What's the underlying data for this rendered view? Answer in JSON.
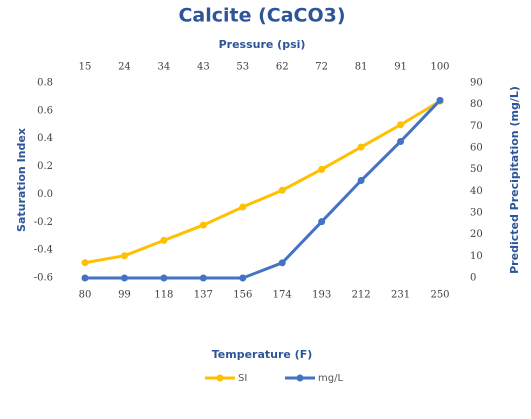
{
  "chart_data": {
    "type": "line",
    "title": "Calcite (CaCO3)",
    "x2_label": "Pressure (psi)",
    "x2_categories": [
      15,
      24,
      34,
      43,
      53,
      62,
      72,
      81,
      91,
      100
    ],
    "xlabel": "Temperature (F)",
    "categories": [
      80,
      99,
      118,
      137,
      156,
      174,
      193,
      212,
      231,
      250
    ],
    "ylabel": "Saturation Index",
    "ylim": [
      -0.6,
      0.8
    ],
    "yticks": [
      -0.6,
      -0.4,
      -0.2,
      {
        "value": 0,
        "label": "0.0"
      },
      0.2,
      0.4,
      0.6,
      0.8
    ],
    "y2label": "Predicted Precipitation (mg/L)",
    "y2lim": [
      0,
      90
    ],
    "y2ticks": [
      0,
      10,
      20,
      30,
      40,
      50,
      60,
      70,
      80,
      90
    ],
    "series": [
      {
        "name": "SI",
        "color": "#ffc000",
        "values": [
          -0.49,
          -0.44,
          -0.33,
          -0.22,
          -0.09,
          0.03,
          0.18,
          0.34,
          0.5,
          0.67
        ]
      },
      {
        "name": "mg/L",
        "color": "#4472c4",
        "axis": "y2",
        "values": [
          0,
          0,
          0,
          0,
          0,
          7,
          26,
          45,
          63,
          82
        ]
      }
    ],
    "legend": "bottom"
  }
}
